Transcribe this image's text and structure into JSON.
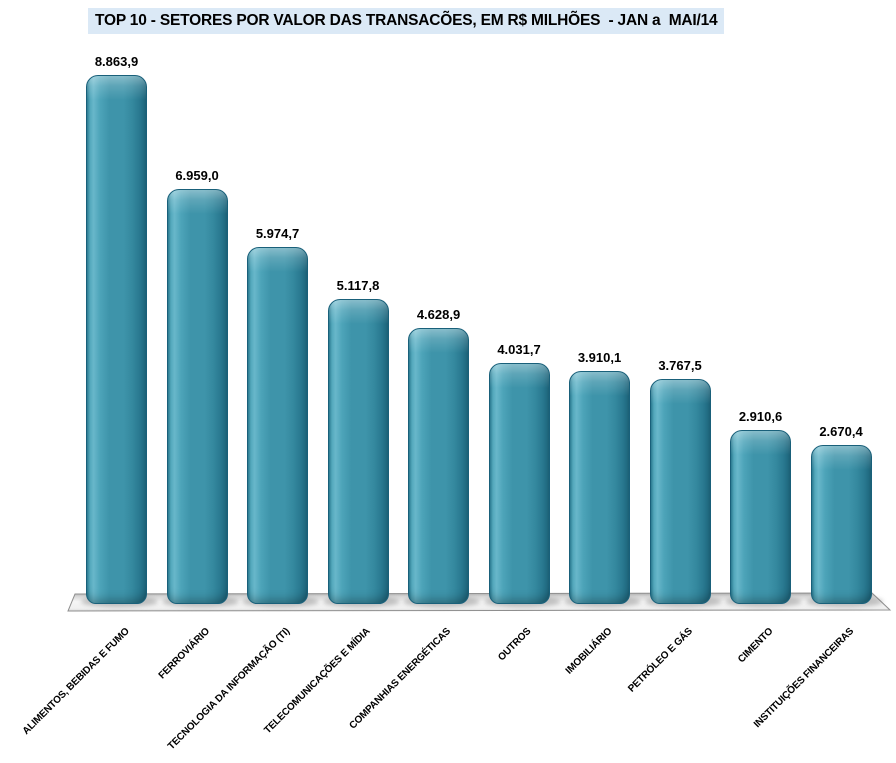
{
  "chart_data": {
    "type": "bar",
    "style": "3d-rounded-column",
    "orientation": "vertical",
    "sorted": "descending",
    "title": "TOP 10 - SETORES POR VALOR DAS TRANSACÕES, EM R$ MILHÕES  - JAN a  MAI/14",
    "title_background": "#dbe9f6",
    "categories": [
      "ALIMENTOS, BEBIDAS E FUMO",
      "FERROVIÁRIO",
      "TECNOLOGIA DA INFORMAÇÃO (TI)",
      "TELECOMUNICAÇÕES E MÍDIA",
      "COMPANHIAS ENERGÉTICAS",
      "OUTROS",
      "IMOBILIÁRIO",
      "PETRÓLEO E GÁS",
      "CIMENTO",
      "INSTITUIÇÕES FINANCEIRAS"
    ],
    "values": [
      8863.9,
      6959.0,
      5974.7,
      5117.8,
      4628.9,
      4031.7,
      3910.1,
      3767.5,
      2910.6,
      2670.4
    ],
    "value_labels": [
      "8.863,9",
      "6.959,0",
      "5.974,7",
      "5.117,8",
      "4.628,9",
      "4.031,7",
      "3.910,1",
      "3.767,5",
      "2.910,6",
      "2.670,4"
    ],
    "xlabel": "",
    "ylabel": "",
    "ylim": [
      0,
      9000
    ],
    "grid": false,
    "legend": false,
    "bar_color": "#3e94aa",
    "bar_highlight": "#68b7ca",
    "bar_dark": "#226d84",
    "bar_outline": "#19607a",
    "floor_fill": "#efefef",
    "floor_stroke": "#8f8f8f",
    "label_color": "#000000"
  }
}
